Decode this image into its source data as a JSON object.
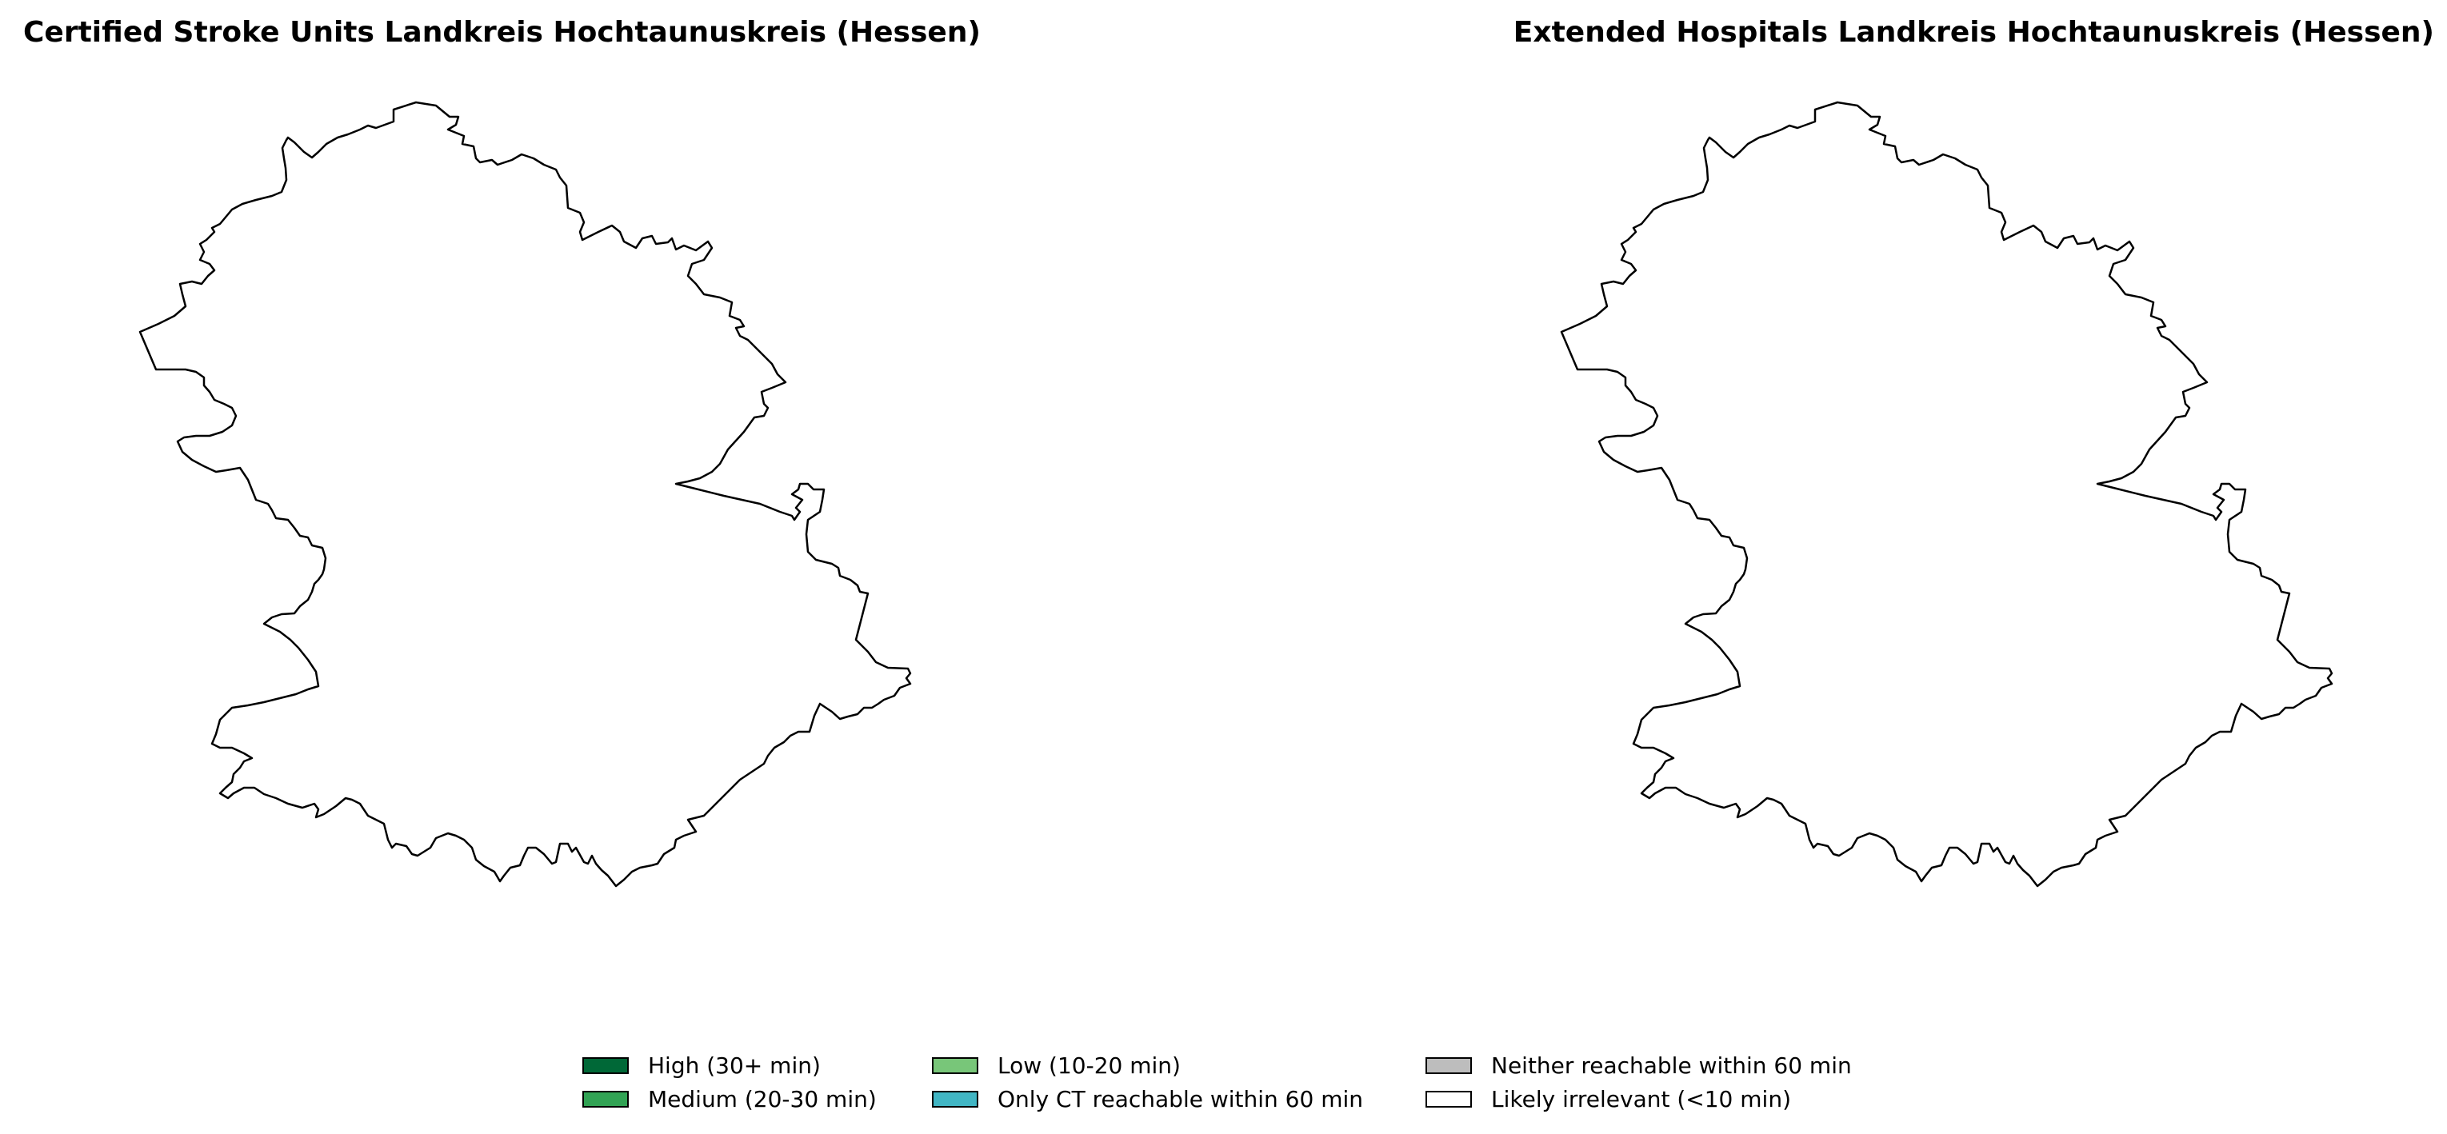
{
  "maps": [
    {
      "title": "Certified Stroke Units Landkreis Hochtaunuskreis (Hessen)"
    },
    {
      "title": "Extended Hospitals Landkreis Hochtaunuskreis (Hessen)"
    }
  ],
  "region_fill": "#ffffff",
  "region_stroke": "#000000",
  "legend": {
    "items": [
      {
        "label": "High (30+ min)",
        "color": "#006837"
      },
      {
        "label": "Medium (20-30 min)",
        "color": "#31a354"
      },
      {
        "label": "Low (10-20 min)",
        "color": "#78c679"
      },
      {
        "label": "Only CT reachable within 60 min",
        "color": "#41b6c4"
      },
      {
        "label": "Neither reachable within 60 min",
        "color": "#bdbdbd"
      },
      {
        "label": "Likely irrelevant (<10 min)",
        "color": "#ffffff"
      }
    ]
  }
}
